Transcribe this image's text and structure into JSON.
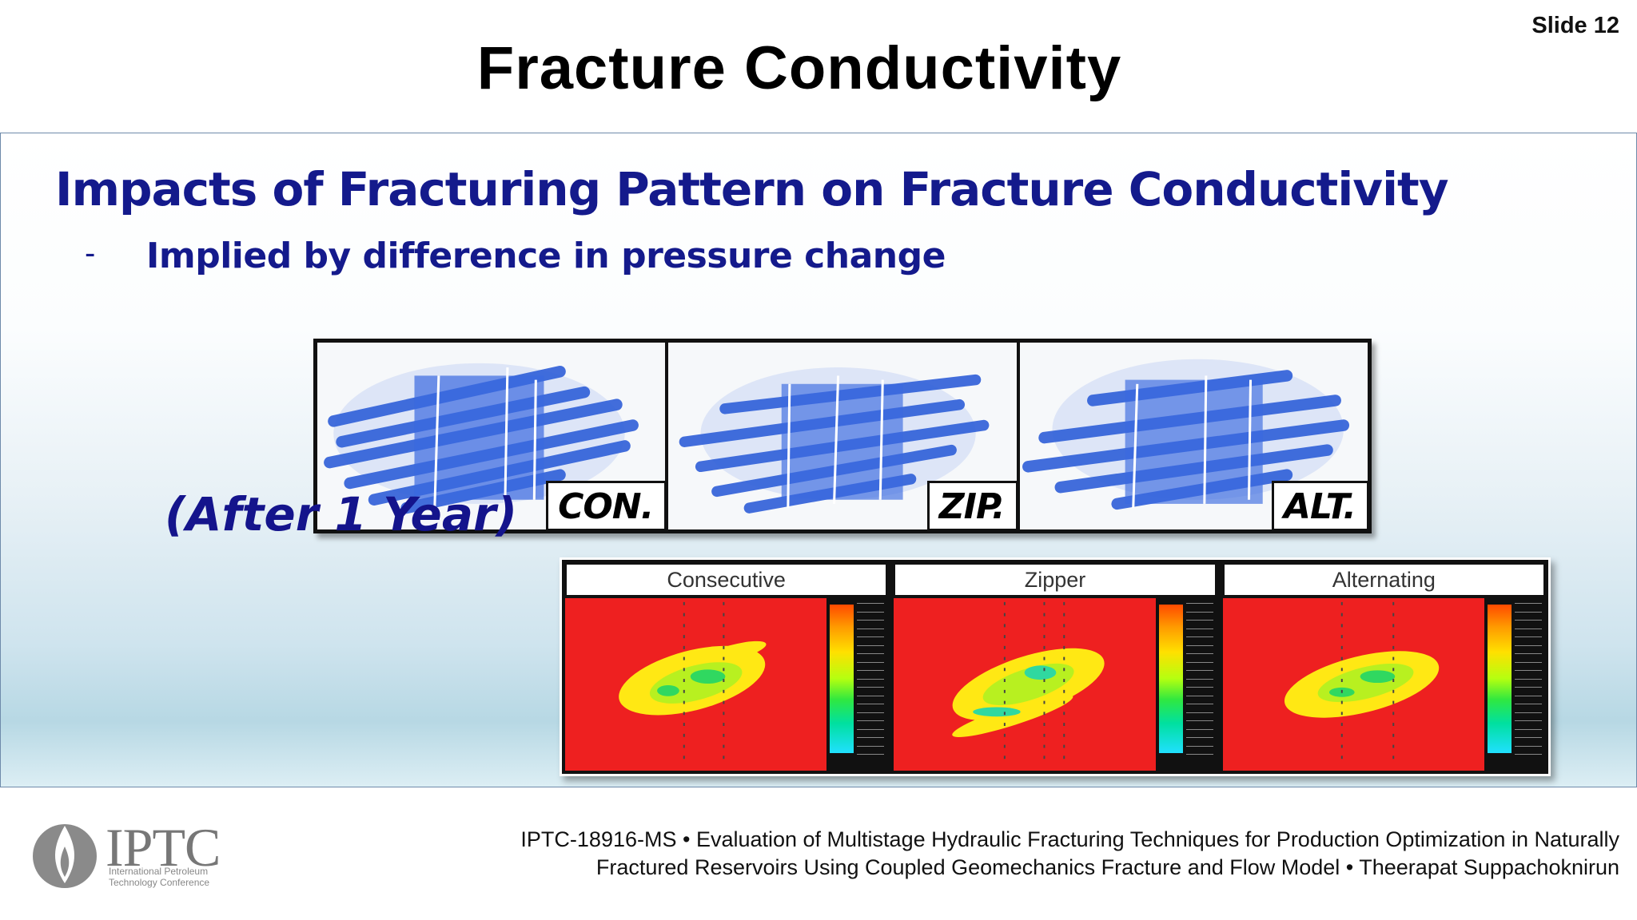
{
  "slide_number": "Slide 12",
  "title": "Fracture Conductivity",
  "heading": "Impacts of Fracturing Pattern on Fracture Conductivity",
  "bullet": {
    "dash": "-",
    "text": "Implied by difference in pressure change"
  },
  "fracture_panels": [
    {
      "label": "CON.",
      "icon": "fracture-network-image"
    },
    {
      "label": "ZIP.",
      "icon": "fracture-network-image"
    },
    {
      "label": "ALT.",
      "icon": "fracture-network-image"
    }
  ],
  "after_label": "(After 1 Year)",
  "pressure_panels": [
    {
      "title": "Consecutive",
      "icon": "pressure-map-image"
    },
    {
      "title": "Zipper",
      "icon": "pressure-map-image"
    },
    {
      "title": "Alternating",
      "icon": "pressure-map-image"
    }
  ],
  "footer": {
    "line1": "IPTC-18916-MS • Evaluation of Multistage Hydraulic Fracturing Techniques for Production Optimization in Naturally",
    "line2": "Fractured Reservoirs Using Coupled Geomechanics Fracture and Flow Model • Theerapat Suppachoknirun"
  },
  "logo": {
    "word": "IPTC",
    "sub1": "International Petroleum",
    "sub2": "Technology Conference"
  },
  "colors": {
    "heading": "#141a8c",
    "pressure_background": "#ee2020",
    "fracture_blue": "#2f5fd8"
  }
}
